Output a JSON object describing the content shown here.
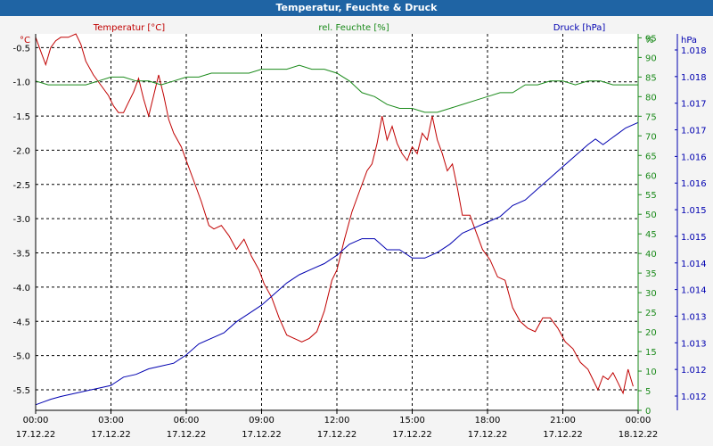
{
  "title": "Temperatur, Feuchte & Druck",
  "chart_data": {
    "type": "line",
    "title": "Temperatur, Feuchte & Druck",
    "x_ticks": [
      {
        "time": "00:00",
        "date": "17.12.22"
      },
      {
        "time": "03:00",
        "date": "17.12.22"
      },
      {
        "time": "06:00",
        "date": "17.12.22"
      },
      {
        "time": "09:00",
        "date": "17.12.22"
      },
      {
        "time": "12:00",
        "date": "17.12.22"
      },
      {
        "time": "15:00",
        "date": "17.12.22"
      },
      {
        "time": "18:00",
        "date": "17.12.22"
      },
      {
        "time": "21:00",
        "date": "17.12.22"
      },
      {
        "time": "00:00",
        "date": "18.12.22"
      }
    ],
    "x_range_hours": [
      0,
      24
    ],
    "grid": true,
    "axes": {
      "temperature": {
        "unit_label": "°C",
        "color": "#c00000",
        "range": [
          -5.8,
          -0.3
        ],
        "ticks": [
          "-0.5",
          "-1.0",
          "-1.5",
          "-2.0",
          "-2.5",
          "-3.0",
          "-3.5",
          "-4.0",
          "-4.5",
          "-5.0",
          "-5.5"
        ]
      },
      "humidity": {
        "color": "#1a8a1a",
        "range": [
          0,
          96
        ],
        "ticks": [
          "0",
          "5",
          "10",
          "15",
          "20",
          "25",
          "30",
          "35",
          "40",
          "45",
          "50",
          "55",
          "60",
          "65",
          "70",
          "75",
          "80",
          "85",
          "90",
          "95"
        ],
        "top_label": "%"
      },
      "pressure": {
        "unit_label": "hPa",
        "color": "#0000b0",
        "range": [
          1.0117,
          1.0185
        ],
        "ticks": [
          "1.012",
          "1.012",
          "1.013",
          "1.013",
          "1.014",
          "1.014",
          "1.015",
          "1.015",
          "1.016",
          "1.016",
          "1.017",
          "1.017",
          "1.018",
          "1.018"
        ]
      }
    },
    "series": [
      {
        "name": "Temperatur [°C]",
        "axis": "temperature",
        "color": "#c00000",
        "points": [
          [
            0,
            -0.35
          ],
          [
            0.2,
            -0.55
          ],
          [
            0.4,
            -0.75
          ],
          [
            0.6,
            -0.5
          ],
          [
            0.8,
            -0.4
          ],
          [
            1.0,
            -0.35
          ],
          [
            1.3,
            -0.35
          ],
          [
            1.6,
            -0.3
          ],
          [
            1.8,
            -0.45
          ],
          [
            2.0,
            -0.7
          ],
          [
            2.3,
            -0.9
          ],
          [
            2.6,
            -1.05
          ],
          [
            2.9,
            -1.2
          ],
          [
            3.1,
            -1.35
          ],
          [
            3.3,
            -1.45
          ],
          [
            3.5,
            -1.45
          ],
          [
            3.7,
            -1.3
          ],
          [
            3.9,
            -1.15
          ],
          [
            4.1,
            -0.95
          ],
          [
            4.3,
            -1.25
          ],
          [
            4.5,
            -1.5
          ],
          [
            4.7,
            -1.2
          ],
          [
            4.9,
            -0.9
          ],
          [
            5.1,
            -1.2
          ],
          [
            5.3,
            -1.55
          ],
          [
            5.5,
            -1.75
          ],
          [
            5.8,
            -1.95
          ],
          [
            6.0,
            -2.15
          ],
          [
            6.3,
            -2.45
          ],
          [
            6.6,
            -2.75
          ],
          [
            6.9,
            -3.1
          ],
          [
            7.1,
            -3.15
          ],
          [
            7.4,
            -3.1
          ],
          [
            7.7,
            -3.25
          ],
          [
            8.0,
            -3.45
          ],
          [
            8.3,
            -3.3
          ],
          [
            8.6,
            -3.55
          ],
          [
            8.9,
            -3.75
          ],
          [
            9.1,
            -3.95
          ],
          [
            9.4,
            -4.15
          ],
          [
            9.7,
            -4.45
          ],
          [
            10.0,
            -4.7
          ],
          [
            10.3,
            -4.75
          ],
          [
            10.6,
            -4.8
          ],
          [
            10.9,
            -4.75
          ],
          [
            11.2,
            -4.65
          ],
          [
            11.5,
            -4.35
          ],
          [
            11.8,
            -3.9
          ],
          [
            12.0,
            -3.75
          ],
          [
            12.3,
            -3.3
          ],
          [
            12.6,
            -2.9
          ],
          [
            12.9,
            -2.6
          ],
          [
            13.2,
            -2.3
          ],
          [
            13.4,
            -2.2
          ],
          [
            13.6,
            -1.9
          ],
          [
            13.8,
            -1.5
          ],
          [
            14.0,
            -1.85
          ],
          [
            14.2,
            -1.65
          ],
          [
            14.4,
            -1.9
          ],
          [
            14.6,
            -2.05
          ],
          [
            14.8,
            -2.15
          ],
          [
            15.0,
            -1.95
          ],
          [
            15.2,
            -2.05
          ],
          [
            15.4,
            -1.75
          ],
          [
            15.6,
            -1.85
          ],
          [
            15.8,
            -1.5
          ],
          [
            16.0,
            -1.85
          ],
          [
            16.2,
            -2.05
          ],
          [
            16.4,
            -2.3
          ],
          [
            16.6,
            -2.2
          ],
          [
            16.8,
            -2.55
          ],
          [
            17.0,
            -2.95
          ],
          [
            17.3,
            -2.95
          ],
          [
            17.5,
            -3.15
          ],
          [
            17.8,
            -3.45
          ],
          [
            18.1,
            -3.6
          ],
          [
            18.4,
            -3.85
          ],
          [
            18.7,
            -3.9
          ],
          [
            19.0,
            -4.3
          ],
          [
            19.3,
            -4.5
          ],
          [
            19.6,
            -4.6
          ],
          [
            19.9,
            -4.65
          ],
          [
            20.2,
            -4.45
          ],
          [
            20.5,
            -4.45
          ],
          [
            20.8,
            -4.6
          ],
          [
            21.1,
            -4.8
          ],
          [
            21.4,
            -4.9
          ],
          [
            21.7,
            -5.1
          ],
          [
            22.0,
            -5.2
          ],
          [
            22.2,
            -5.35
          ],
          [
            22.4,
            -5.5
          ],
          [
            22.6,
            -5.3
          ],
          [
            22.8,
            -5.35
          ],
          [
            23.0,
            -5.25
          ],
          [
            23.2,
            -5.4
          ],
          [
            23.4,
            -5.55
          ],
          [
            23.6,
            -5.2
          ],
          [
            23.8,
            -5.45
          ]
        ]
      },
      {
        "name": "rel. Feuchte [%]",
        "axis": "humidity",
        "color": "#1a8a1a",
        "points": [
          [
            0,
            84
          ],
          [
            0.5,
            83
          ],
          [
            1.0,
            83
          ],
          [
            1.5,
            83
          ],
          [
            2.0,
            83
          ],
          [
            2.5,
            84
          ],
          [
            3.0,
            85
          ],
          [
            3.5,
            85
          ],
          [
            4.0,
            84
          ],
          [
            4.5,
            84
          ],
          [
            5.0,
            83
          ],
          [
            5.5,
            84
          ],
          [
            6.0,
            85
          ],
          [
            6.5,
            85
          ],
          [
            7.0,
            86
          ],
          [
            7.5,
            86
          ],
          [
            8.0,
            86
          ],
          [
            8.5,
            86
          ],
          [
            9.0,
            87
          ],
          [
            9.5,
            87
          ],
          [
            10.0,
            87
          ],
          [
            10.5,
            88
          ],
          [
            11.0,
            87
          ],
          [
            11.5,
            87
          ],
          [
            12.0,
            86
          ],
          [
            12.5,
            84
          ],
          [
            13.0,
            81
          ],
          [
            13.5,
            80
          ],
          [
            14.0,
            78
          ],
          [
            14.5,
            77
          ],
          [
            15.0,
            77
          ],
          [
            15.5,
            76
          ],
          [
            16.0,
            76
          ],
          [
            16.5,
            77
          ],
          [
            17.0,
            78
          ],
          [
            17.5,
            79
          ],
          [
            18.0,
            80
          ],
          [
            18.5,
            81
          ],
          [
            19.0,
            81
          ],
          [
            19.5,
            83
          ],
          [
            20.0,
            83
          ],
          [
            20.5,
            84
          ],
          [
            21.0,
            84
          ],
          [
            21.5,
            83
          ],
          [
            22.0,
            84
          ],
          [
            22.5,
            84
          ],
          [
            23.0,
            83
          ],
          [
            23.5,
            83
          ],
          [
            24.0,
            83
          ]
        ]
      },
      {
        "name": "Druck [hPa]",
        "axis": "pressure",
        "color": "#0000b0",
        "points": [
          [
            0,
            1.0118
          ],
          [
            0.3,
            1.01185
          ],
          [
            0.6,
            1.0119
          ],
          [
            1.0,
            1.01195
          ],
          [
            1.5,
            1.012
          ],
          [
            2.0,
            1.01205
          ],
          [
            2.5,
            1.0121
          ],
          [
            3.0,
            1.01215
          ],
          [
            3.5,
            1.0123
          ],
          [
            4.0,
            1.01235
          ],
          [
            4.5,
            1.01245
          ],
          [
            5.0,
            1.0125
          ],
          [
            5.5,
            1.01255
          ],
          [
            6.0,
            1.0127
          ],
          [
            6.5,
            1.0129
          ],
          [
            7.0,
            1.013
          ],
          [
            7.5,
            1.0131
          ],
          [
            8.0,
            1.0133
          ],
          [
            8.5,
            1.01345
          ],
          [
            9.0,
            1.0136
          ],
          [
            9.5,
            1.0138
          ],
          [
            10.0,
            1.014
          ],
          [
            10.5,
            1.01415
          ],
          [
            11.0,
            1.01425
          ],
          [
            11.5,
            1.01435
          ],
          [
            12.0,
            1.0145
          ],
          [
            12.5,
            1.0147
          ],
          [
            13.0,
            1.0148
          ],
          [
            13.5,
            1.0148
          ],
          [
            14.0,
            1.0146
          ],
          [
            14.5,
            1.0146
          ],
          [
            15.0,
            1.01445
          ],
          [
            15.5,
            1.01445
          ],
          [
            16.0,
            1.01455
          ],
          [
            16.5,
            1.0147
          ],
          [
            17.0,
            1.0149
          ],
          [
            17.5,
            1.015
          ],
          [
            18.0,
            1.0151
          ],
          [
            18.5,
            1.0152
          ],
          [
            19.0,
            1.0154
          ],
          [
            19.5,
            1.0155
          ],
          [
            20.0,
            1.0157
          ],
          [
            20.5,
            1.0159
          ],
          [
            21.0,
            1.0161
          ],
          [
            21.5,
            1.0163
          ],
          [
            22.0,
            1.0165
          ],
          [
            22.3,
            1.0166
          ],
          [
            22.6,
            1.0165
          ],
          [
            22.9,
            1.0166
          ],
          [
            23.2,
            1.0167
          ],
          [
            23.5,
            1.0168
          ],
          [
            24.0,
            1.0169
          ]
        ]
      }
    ]
  }
}
